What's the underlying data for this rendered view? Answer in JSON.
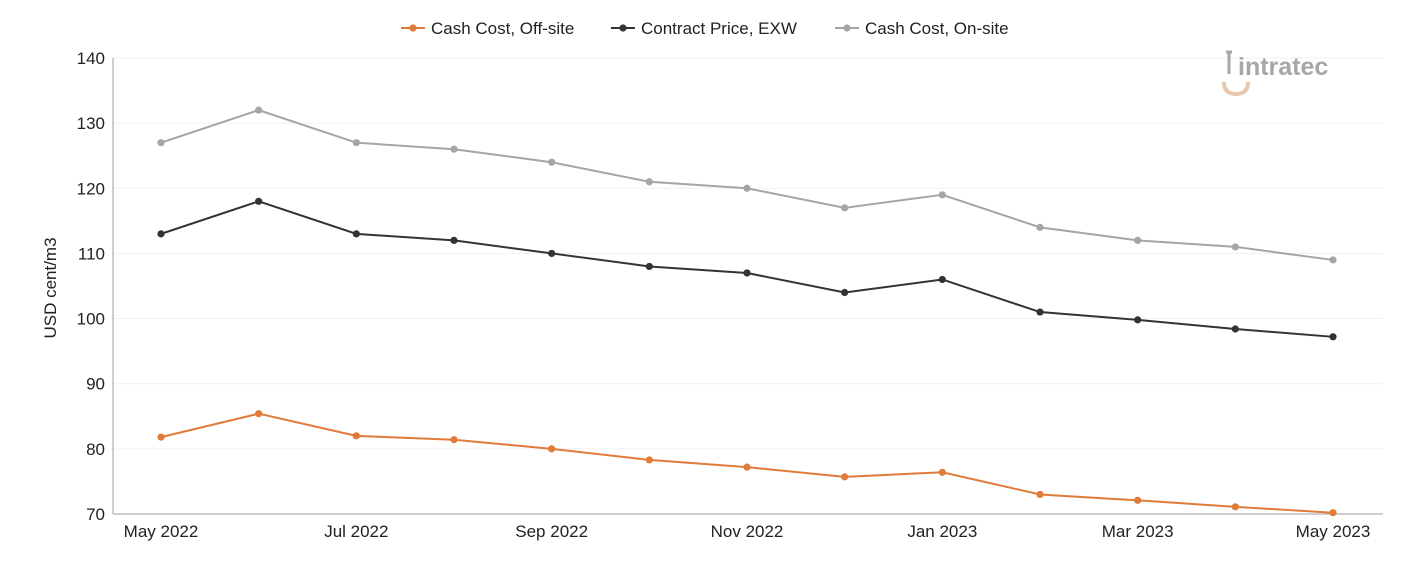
{
  "logo": {
    "text": "intratec"
  },
  "chart_data": {
    "type": "line",
    "title": "",
    "xlabel": "",
    "ylabel": "USD cent/m3",
    "ylim": [
      70,
      140
    ],
    "yticks": [
      70,
      80,
      90,
      100,
      110,
      120,
      130,
      140
    ],
    "grid": true,
    "legend_position": "top-center",
    "x": [
      "May 2022",
      "Jun 2022",
      "Jul 2022",
      "Aug 2022",
      "Sep 2022",
      "Oct 2022",
      "Nov 2022",
      "Dec 2022",
      "Jan 2023",
      "Feb 2023",
      "Mar 2023",
      "Apr 2023",
      "May 2023"
    ],
    "xtick_labels": [
      "May 2022",
      "",
      "Jul 2022",
      "",
      "Sep 2022",
      "",
      "Nov 2022",
      "",
      "Jan 2023",
      "",
      "Mar 2023",
      "",
      "May 2023"
    ],
    "series": [
      {
        "name": "Cash Cost, Off-site",
        "color": "#e07b39",
        "values": [
          81.8,
          85.4,
          82.0,
          81.4,
          80.0,
          78.3,
          77.2,
          75.7,
          76.4,
          73.0,
          72.1,
          71.1,
          70.2
        ]
      },
      {
        "name": "Contract Price, EXW",
        "color": "#333333",
        "values": [
          113,
          118,
          113,
          112,
          110,
          108,
          107,
          104,
          106,
          101,
          99.8,
          98.4,
          97.2
        ]
      },
      {
        "name": "Cash Cost, On-site",
        "color": "#a5a5a5",
        "values": [
          127,
          132,
          127,
          126,
          124,
          121,
          120,
          117,
          119,
          114,
          112,
          111,
          109
        ]
      }
    ]
  }
}
